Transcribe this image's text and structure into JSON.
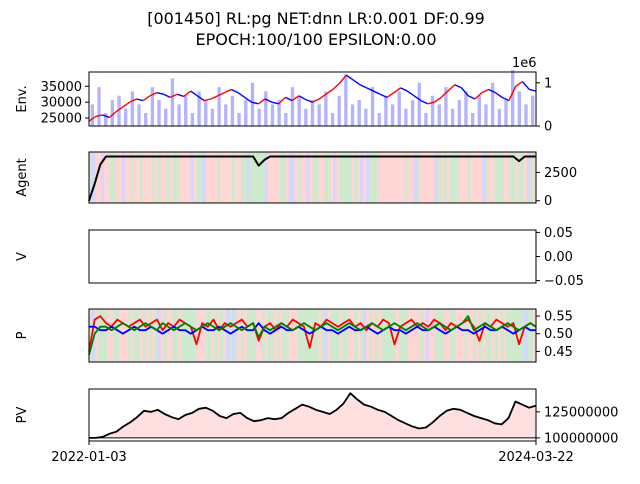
{
  "figure": {
    "title_line1": "[001450] RL:pg NET:dnn LR:0.001 DF:0.99",
    "title_line2": "EPOCH:100/100 EPSILON:0.00",
    "x_start_label": "2022-01-03",
    "x_end_label": "2024-03-22"
  },
  "colors": {
    "price_up": "#ff0000",
    "price_down": "#0000ff",
    "volume": "#b3b3ff",
    "hold_bg": "#c8e6c8",
    "buy_bg": "#ffd0d0",
    "sell_bg": "#d0d0ff",
    "agent_line": "#000000",
    "p_buy": "#ff0000",
    "p_sell": "#0000ff",
    "p_hold": "#008000",
    "pv_fill": "#ffe0e0"
  },
  "chart_data": [
    {
      "type": "line",
      "panel": "env",
      "ylabel": "Env.",
      "left_ticks": [
        "25000",
        "30000",
        "35000"
      ],
      "left_tick_values": [
        25000,
        30000,
        35000
      ],
      "ylim": [
        22500,
        39500
      ],
      "right_ticks": [
        "0",
        "1"
      ],
      "right_tick_values": [
        0,
        1
      ],
      "right_ylim": [
        0,
        1.25
      ],
      "right_offset_label": "1e6",
      "series": [
        {
          "name": "",
          "kind": "price",
          "values": [
            24000,
            25500,
            26000,
            25200,
            27000,
            28500,
            30000,
            31000,
            30500,
            32000,
            33000,
            32500,
            31500,
            32500,
            31800,
            33500,
            32000,
            30500,
            31000,
            32000,
            33000,
            34000,
            33000,
            31500,
            30000,
            29500,
            31000,
            30000,
            29500,
            31500,
            30500,
            32000,
            30800,
            30000,
            31000,
            32500,
            34000,
            36000,
            38500,
            37000,
            35500,
            34500,
            33500,
            32500,
            31500,
            33000,
            34500,
            33500,
            32000,
            30500,
            29500,
            30000,
            31500,
            33500,
            35500,
            34500,
            32000,
            31000,
            33000,
            34000,
            33000,
            31500,
            30500,
            35000,
            36500,
            34000,
            33500
          ]
        },
        {
          "name": "",
          "kind": "volume",
          "values": [
            0.5,
            0.9,
            0.3,
            0.6,
            0.7,
            0.4,
            0.8,
            0.5,
            0.3,
            0.9,
            0.6,
            0.4,
            1.1,
            0.5,
            0.7,
            0.3,
            0.8,
            0.6,
            0.4,
            0.9,
            0.5,
            0.7,
            0.3,
            0.6,
            1.0,
            0.4,
            0.8,
            0.5,
            0.6,
            0.3,
            0.9,
            0.7,
            0.4,
            0.6,
            0.5,
            0.8,
            0.3,
            0.7,
            1.2,
            0.5,
            0.6,
            0.4,
            0.9,
            0.3,
            0.7,
            0.5,
            0.8,
            0.4,
            0.6,
            1.0,
            0.3,
            0.7,
            0.5,
            0.9,
            0.4,
            0.6,
            0.8,
            0.3,
            0.7,
            0.5,
            1.0,
            0.4,
            0.6,
            1.3,
            0.8,
            0.5,
            0.7
          ]
        }
      ]
    },
    {
      "type": "line",
      "panel": "agent",
      "ylabel": "Agent",
      "right_ticks": [
        "0",
        "2500"
      ],
      "right_tick_values": [
        0,
        2500
      ],
      "ylim": [
        -200,
        4300
      ],
      "series": [
        {
          "name": "",
          "values": [
            0,
            1500,
            3200,
            3900,
            3900,
            3900,
            3900,
            3900,
            3900,
            3900,
            3900,
            3900,
            3900,
            3900,
            3900,
            3900,
            3900,
            3900,
            3900,
            3900,
            3900,
            3900,
            3900,
            3900,
            3900,
            3900,
            3900,
            3900,
            3900,
            3900,
            3100,
            3600,
            3900,
            3900,
            3900,
            3900,
            3900,
            3900,
            3900,
            3900,
            3900,
            3900,
            3900,
            3900,
            3900,
            3900,
            3900,
            3900,
            3900,
            3900,
            3900,
            3900,
            3900,
            3900,
            3900,
            3900,
            3900,
            3900,
            3900,
            3900,
            3900,
            3900,
            3900,
            3900,
            3900,
            3900,
            3900,
            3900,
            3900,
            3900,
            3900,
            3900,
            3900,
            3900,
            3900,
            3900,
            3500,
            3900,
            3900,
            3900
          ]
        }
      ]
    },
    {
      "type": "line",
      "panel": "value",
      "ylabel": "V",
      "right_ticks": [
        "0.05",
        "0.00",
        "−0.05"
      ],
      "right_tick_values": [
        0.05,
        0.0,
        -0.05
      ],
      "ylim": [
        -0.055,
        0.055
      ],
      "series": []
    },
    {
      "type": "line",
      "panel": "policy",
      "ylabel": "P",
      "right_ticks": [
        "0.55",
        "0.50",
        "0.45"
      ],
      "right_tick_values": [
        0.55,
        0.5,
        0.45
      ],
      "ylim": [
        0.42,
        0.57
      ],
      "series": [
        {
          "name": "",
          "values": [
            0.45,
            0.54,
            0.55,
            0.53,
            0.52,
            0.54,
            0.53,
            0.52,
            0.53,
            0.54,
            0.52,
            0.53,
            0.54,
            0.51,
            0.53,
            0.52,
            0.54,
            0.53,
            0.52,
            0.47,
            0.53,
            0.52,
            0.54,
            0.51,
            0.53,
            0.52,
            0.53,
            0.54,
            0.52,
            0.53,
            0.48,
            0.52,
            0.53,
            0.51,
            0.53,
            0.52,
            0.54,
            0.53,
            0.52,
            0.46,
            0.53,
            0.52,
            0.54,
            0.53,
            0.52,
            0.53,
            0.54,
            0.52,
            0.53,
            0.51,
            0.53,
            0.52,
            0.54,
            0.53,
            0.47,
            0.52,
            0.53,
            0.54,
            0.52,
            0.53,
            0.52,
            0.54,
            0.53,
            0.51,
            0.53,
            0.52,
            0.53,
            0.54,
            0.52,
            0.48,
            0.53,
            0.52,
            0.54,
            0.53,
            0.52,
            0.53,
            0.47,
            0.52,
            0.53,
            0.52
          ]
        },
        {
          "name": "",
          "values": [
            0.52,
            0.52,
            0.51,
            0.51,
            0.52,
            0.51,
            0.5,
            0.51,
            0.52,
            0.51,
            0.51,
            0.52,
            0.51,
            0.5,
            0.51,
            0.52,
            0.51,
            0.51,
            0.5,
            0.51,
            0.52,
            0.51,
            0.51,
            0.52,
            0.51,
            0.5,
            0.51,
            0.52,
            0.51,
            0.51,
            0.53,
            0.51,
            0.5,
            0.51,
            0.52,
            0.51,
            0.51,
            0.52,
            0.51,
            0.5,
            0.51,
            0.52,
            0.51,
            0.51,
            0.5,
            0.51,
            0.52,
            0.51,
            0.51,
            0.52,
            0.51,
            0.5,
            0.51,
            0.52,
            0.51,
            0.51,
            0.5,
            0.51,
            0.52,
            0.51,
            0.51,
            0.52,
            0.51,
            0.5,
            0.51,
            0.52,
            0.51,
            0.51,
            0.5,
            0.51,
            0.52,
            0.51,
            0.51,
            0.52,
            0.51,
            0.5,
            0.51,
            0.52,
            0.51,
            0.51
          ]
        },
        {
          "name": "",
          "values": [
            0.44,
            0.5,
            0.52,
            0.52,
            0.51,
            0.52,
            0.53,
            0.52,
            0.51,
            0.52,
            0.53,
            0.52,
            0.51,
            0.53,
            0.52,
            0.51,
            0.52,
            0.53,
            0.52,
            0.51,
            0.52,
            0.53,
            0.52,
            0.51,
            0.52,
            0.53,
            0.52,
            0.51,
            0.52,
            0.53,
            0.49,
            0.52,
            0.51,
            0.52,
            0.53,
            0.52,
            0.51,
            0.52,
            0.53,
            0.52,
            0.51,
            0.52,
            0.53,
            0.52,
            0.51,
            0.52,
            0.53,
            0.52,
            0.51,
            0.52,
            0.53,
            0.52,
            0.51,
            0.52,
            0.53,
            0.52,
            0.51,
            0.52,
            0.53,
            0.52,
            0.51,
            0.52,
            0.53,
            0.52,
            0.51,
            0.52,
            0.53,
            0.55,
            0.51,
            0.52,
            0.53,
            0.52,
            0.51,
            0.52,
            0.53,
            0.52,
            0.51,
            0.52,
            0.53,
            0.52
          ]
        }
      ]
    },
    {
      "type": "area",
      "panel": "pv",
      "ylabel": "PV",
      "right_ticks": [
        "100000000",
        "125000000"
      ],
      "right_tick_values": [
        100000000,
        125000000
      ],
      "ylim": [
        97000000,
        147000000
      ],
      "baseline": 100000000,
      "series": [
        {
          "name": "",
          "values": [
            100000000,
            100000000,
            101000000,
            104000000,
            106000000,
            111000000,
            115000000,
            120000000,
            126000000,
            125000000,
            127000000,
            123000000,
            120000000,
            118000000,
            122000000,
            124000000,
            128000000,
            129000000,
            126000000,
            121000000,
            119000000,
            123000000,
            124000000,
            119000000,
            116000000,
            117000000,
            119000000,
            118000000,
            119000000,
            124000000,
            128000000,
            132000000,
            130000000,
            127000000,
            125000000,
            123000000,
            127000000,
            133000000,
            143000000,
            137000000,
            132000000,
            130000000,
            127000000,
            125000000,
            121000000,
            117000000,
            114000000,
            111000000,
            109000000,
            110000000,
            115000000,
            121000000,
            126000000,
            128000000,
            127000000,
            124000000,
            121000000,
            119000000,
            117000000,
            114000000,
            113000000,
            119000000,
            135000000,
            132000000,
            129000000,
            131000000
          ]
        }
      ]
    }
  ]
}
